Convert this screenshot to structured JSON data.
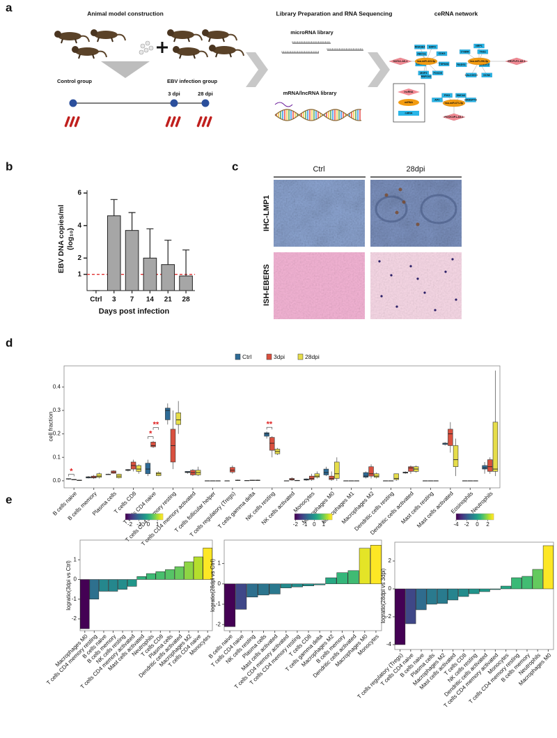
{
  "panel_labels": [
    "a",
    "b",
    "c",
    "d",
    "e"
  ],
  "panel_a": {
    "titles": [
      "Animal model construction",
      "Library Preparation and RNA Sequencing",
      "ceRNA network"
    ],
    "groups": [
      "Control group",
      "EBV infection group"
    ],
    "timepoints": [
      "3 dpi",
      "28 dpi"
    ],
    "libraries": [
      "microRNA library",
      "mRNA/lncRNA library"
    ],
    "network": {
      "modules": [
        {
          "mirna": "hsa-miR-423-5p",
          "lncrna": "GATA1-AS-1",
          "mrnas": [
            "EMP3",
            "CDK5",
            "TSPAN4",
            "FOCD5",
            "RBFOX2",
            "MGP3",
            "CENPE",
            "ABCG1",
            "RNASE4"
          ]
        },
        {
          "mirna": "hsa-miR-296-5p",
          "lncrna": "ERVFLF2-AS-1",
          "mrnas": [
            "CALCOCO",
            "RADS1",
            "CYB5R",
            "NRP1",
            "TNS1",
            "UBE2C2",
            "DCN3"
          ]
        },
        {
          "mirna": "hsa-miR-671-5p",
          "lncrna": "POCK1IP1-AS-1",
          "mrnas": [
            "APC",
            "PIK3",
            "SMCA4",
            "HABSPTN"
          ]
        }
      ],
      "legend": [
        "lncRNA",
        "miRNA",
        "mRNA"
      ]
    }
  },
  "panel_c": {
    "columns": [
      "Ctrl",
      "28dpi"
    ],
    "rows": [
      "IHC-LMP1",
      "ISH-EBERS"
    ]
  },
  "chart_data": [
    {
      "type": "bar",
      "ylabel": [
        "EBV DNA copies/ml",
        "(log₁₀)"
      ],
      "xlabel": "Days post infection",
      "categories": [
        "Ctrl",
        "3",
        "7",
        "14",
        "21",
        "28"
      ],
      "values": [
        0,
        4.6,
        3.7,
        2.0,
        1.6,
        0.9
      ],
      "errors": [
        0,
        1.0,
        1.1,
        1.8,
        1.5,
        1.6
      ],
      "color": "#a6a6a6",
      "ylim": [
        0,
        6
      ],
      "yticks": [
        1,
        2,
        4,
        6
      ],
      "reference_line": {
        "value": 1,
        "color": "#e03030"
      }
    },
    {
      "type": "box",
      "ylabel": "cell fraction",
      "categories": [
        "B cells naive",
        "B cells memory",
        "Plasma cells",
        "T cells CD8",
        "T cells CD4 naive",
        "T cells CD4 memory resting",
        "T cells CD4 memory activated",
        "T cells follicular helper",
        "T cells regulatory (Tregs)",
        "T cells gamma delta",
        "NK cells resting",
        "NK cells activated",
        "Monocytes",
        "Macrophages M0",
        "Macrophages M1",
        "Macrophages M2",
        "Dendritic cells resting",
        "Dendritic cells activated",
        "Mast cells resting",
        "Mast cells activated",
        "Eosinophils",
        "Neutrophils"
      ],
      "series": [
        {
          "name": "Ctrl",
          "color": "#2e6b96",
          "values": [
            [
              0.005,
              0.007,
              0.008,
              0.009,
              0.01
            ],
            [
              0.01,
              0.012,
              0.015,
              0.017,
              0.02
            ],
            [
              0.025,
              0.026,
              0.027,
              0.028,
              0.03
            ],
            [
              0.04,
              0.044,
              0.046,
              0.048,
              0.05
            ],
            [
              0.02,
              0.03,
              0.05,
              0.075,
              0.09
            ],
            [
              0.24,
              0.26,
              0.3,
              0.31,
              0.33
            ],
            [
              0.03,
              0.035,
              0.037,
              0.04,
              0.04
            ],
            [
              0,
              0,
              0,
              0,
              0
            ],
            [
              0,
              0,
              0,
              0,
              0
            ],
            [
              0,
              0,
              0.001,
              0.001,
              0.002
            ],
            [
              0.18,
              0.19,
              0.2,
              0.205,
              0.21
            ],
            [
              0,
              0,
              0,
              0,
              0
            ],
            [
              0,
              0.003,
              0.005,
              0.008,
              0.01
            ],
            [
              0.02,
              0.025,
              0.035,
              0.05,
              0.06
            ],
            [
              0,
              0,
              0,
              0,
              0
            ],
            [
              0.01,
              0.015,
              0.02,
              0.035,
              0.04
            ],
            [
              0,
              0,
              0,
              0,
              0
            ],
            [
              0.03,
              0.033,
              0.035,
              0.037,
              0.04
            ],
            [
              0,
              0,
              0,
              0,
              0
            ],
            [
              0.15,
              0.155,
              0.16,
              0.16,
              0.165
            ],
            [
              0,
              0,
              0,
              0,
              0
            ],
            [
              0.03,
              0.05,
              0.055,
              0.065,
              0.08
            ]
          ]
        },
        {
          "name": "3dpi",
          "color": "#d9503f",
          "values": [
            [
              0.003,
              0.004,
              0.005,
              0.006,
              0.007
            ],
            [
              0.008,
              0.012,
              0.015,
              0.02,
              0.025
            ],
            [
              0.03,
              0.032,
              0.037,
              0.042,
              0.045
            ],
            [
              0.04,
              0.05,
              0.065,
              0.08,
              0.09
            ],
            [
              0.14,
              0.145,
              0.15,
              0.165,
              0.17
            ],
            [
              0.05,
              0.08,
              0.15,
              0.22,
              0.3
            ],
            [
              0.02,
              0.025,
              0.035,
              0.045,
              0.05
            ],
            [
              0,
              0,
              0,
              0,
              0
            ],
            [
              0.03,
              0.037,
              0.045,
              0.057,
              0.065
            ],
            [
              0,
              0.001,
              0.002,
              0.003,
              0.004
            ],
            [
              0.1,
              0.13,
              0.16,
              0.185,
              0.19
            ],
            [
              0,
              0.003,
              0.006,
              0.01,
              0.015
            ],
            [
              0,
              0.005,
              0.01,
              0.02,
              0.03
            ],
            [
              0,
              0.005,
              0.01,
              0.02,
              0.04
            ],
            [
              0,
              0,
              0,
              0,
              0
            ],
            [
              0.01,
              0.02,
              0.03,
              0.06,
              0.07
            ],
            [
              0,
              0,
              0,
              0,
              0
            ],
            [
              0.03,
              0.04,
              0.055,
              0.06,
              0.065
            ],
            [
              0,
              0,
              0,
              0,
              0
            ],
            [
              0.12,
              0.15,
              0.2,
              0.22,
              0.25
            ],
            [
              0,
              0,
              0,
              0,
              0
            ],
            [
              0.03,
              0.04,
              0.06,
              0.09,
              0.1
            ]
          ]
        },
        {
          "name": "28dpi",
          "color": "#e6dd4a",
          "values": [
            [
              0,
              0.001,
              0.002,
              0.003,
              0.004
            ],
            [
              0.01,
              0.015,
              0.02,
              0.03,
              0.035
            ],
            [
              0.01,
              0.013,
              0.02,
              0.028,
              0.03
            ],
            [
              0.03,
              0.04,
              0.05,
              0.065,
              0.07
            ],
            [
              0.02,
              0.022,
              0.03,
              0.035,
              0.04
            ],
            [
              0.2,
              0.24,
              0.26,
              0.29,
              0.34
            ],
            [
              0.02,
              0.025,
              0.035,
              0.045,
              0.06
            ],
            [
              0,
              0,
              0,
              0,
              0
            ],
            [
              0,
              0.001,
              0.002,
              0.003,
              0.005
            ],
            [
              0,
              0.001,
              0.002,
              0.003,
              0.005
            ],
            [
              0.11,
              0.115,
              0.125,
              0.135,
              0.14
            ],
            [
              0,
              0,
              0.001,
              0.002,
              0.003
            ],
            [
              0.01,
              0.015,
              0.02,
              0.03,
              0.04
            ],
            [
              0,
              0.01,
              0.03,
              0.08,
              0.1
            ],
            [
              0,
              0,
              0,
              0,
              0
            ],
            [
              0.01,
              0.015,
              0.02,
              0.03,
              0.035
            ],
            [
              0,
              0.005,
              0.01,
              0.03,
              0.03
            ],
            [
              0.035,
              0.04,
              0.05,
              0.06,
              0.065
            ],
            [
              0,
              0,
              0,
              0,
              0
            ],
            [
              0.02,
              0.06,
              0.09,
              0.15,
              0.18
            ],
            [
              0,
              0,
              0,
              0,
              0
            ],
            [
              0.02,
              0.04,
              0.05,
              0.25,
              0.47
            ]
          ]
        }
      ],
      "ylim": [
        -0.03,
        0.49
      ],
      "yticks": [
        {
          "value": 0,
          "label": "0.0"
        },
        0.1,
        0.2,
        0.3,
        0.4
      ],
      "significance": [
        [
          "*"
        ],
        null,
        null,
        null,
        [
          "*",
          "**"
        ],
        null,
        null,
        null,
        null,
        null,
        [
          "**"
        ],
        null,
        null,
        null,
        null,
        null,
        null,
        null,
        null,
        null,
        null,
        null
      ],
      "significance_color": "#e02020",
      "legend": "top"
    },
    {
      "type": "bar",
      "ylabel": "logratio(3dpi vs Ctrl)",
      "categories": [
        "Macrophages M0",
        "T cells CD4 memory resting",
        "B cells naive",
        "B cells memory",
        "NK cells resting",
        "T cells CD4 memory activated",
        "Mast cells activated",
        "Neutrophils",
        "T cells CD8",
        "Plasma cells",
        "Dendritic cells activated",
        "Macrophages M2",
        "T cells CD4 naive",
        "Monocytes"
      ],
      "values": [
        -2.5,
        -1.0,
        -0.6,
        -0.6,
        -0.5,
        -0.35,
        0.15,
        0.3,
        0.4,
        0.5,
        0.65,
        0.9,
        1.15,
        1.6
      ],
      "ylim": [
        -2.6,
        2.0
      ],
      "yticks": [
        -2,
        -1,
        0,
        1
      ],
      "colormap": "viridis",
      "colorbar_ticks": [
        -2,
        -1,
        0,
        1
      ]
    },
    {
      "type": "bar",
      "ylabel": "logratio(28dpi vs Ctrl)",
      "categories": [
        "B cells naive",
        "T cells CD4 naive",
        "NK cells resting",
        "Plasma cells",
        "Mast cells activated",
        "T cells CD4 memory activated",
        "T cells CD4 memory resting",
        "T cells CD8",
        "T cells gamma delta",
        "Macrophages M2",
        "B cells memory",
        "Dendritic cells activated",
        "Macrophages M0",
        "Monocytes"
      ],
      "values": [
        -2.1,
        -1.25,
        -0.65,
        -0.55,
        -0.5,
        -0.2,
        -0.15,
        -0.1,
        -0.05,
        0.3,
        0.55,
        0.65,
        1.75,
        1.9
      ],
      "ylim": [
        -2.3,
        2.15
      ],
      "yticks": [
        -2,
        -1,
        0,
        1
      ],
      "colormap": "viridis",
      "colorbar_ticks": [
        -2,
        -1,
        0,
        1
      ]
    },
    {
      "type": "bar",
      "ylabel": "logratio(28dpi vs 3dpi)",
      "categories": [
        "T cells regulatory (Tregs)",
        "T cells CD4 naive",
        "B cells naive",
        "Plasma cells",
        "Macrophages M2",
        "Mast cells activated",
        "T cells CD8",
        "NK cells resting",
        "Dendritic cells activated",
        "T cells CD4 memory activated",
        "Monocytes",
        "T cells CD4 memory resting",
        "B cells memory",
        "Neutrophils",
        "Macrophages M0"
      ],
      "values": [
        -4.0,
        -2.5,
        -1.5,
        -1.1,
        -1.05,
        -0.8,
        -0.55,
        -0.35,
        -0.2,
        -0.05,
        0.2,
        0.8,
        0.9,
        1.4,
        3.1
      ],
      "ylim": [
        -4.35,
        3.35
      ],
      "yticks": [
        -4,
        -2,
        0,
        2
      ],
      "colormap": "viridis",
      "colorbar_ticks": [
        -4,
        -2,
        0,
        2
      ]
    }
  ]
}
